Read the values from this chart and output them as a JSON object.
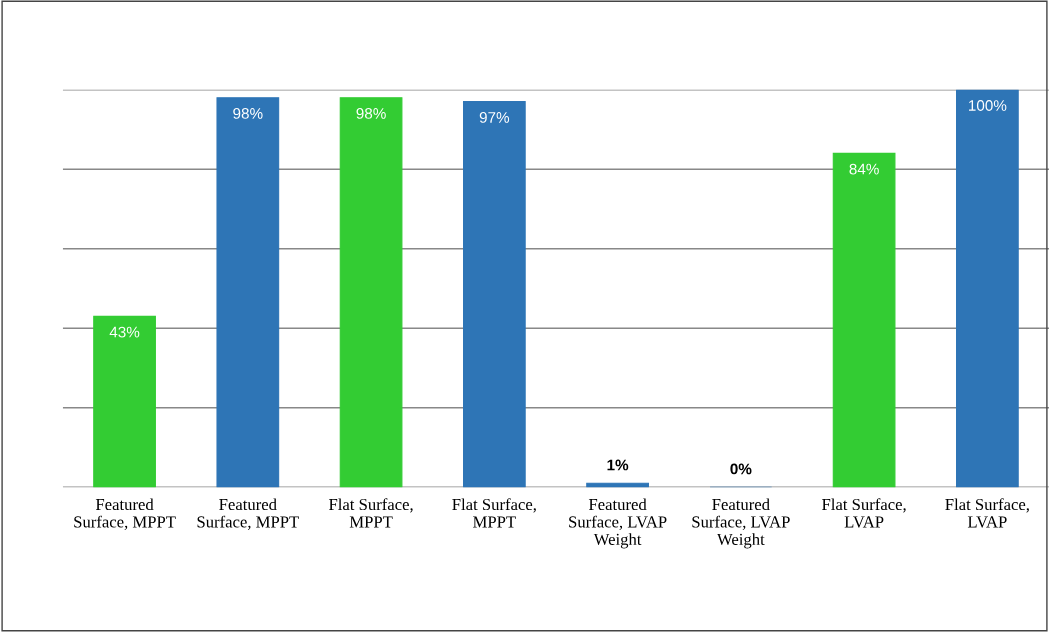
{
  "chart_data": {
    "type": "bar",
    "categories": [
      "Featured\nSurface, MPPT",
      "Featured\nSurface, MPPT",
      "Flat Surface,\nMPPT",
      "Flat Surface,\nMPPT",
      "Featured\nSurface, LVAP\nWeight",
      "Featured\nSurface, LVAP\nWeight",
      "Flat Surface,\nLVAP",
      "Flat Surface,\nLVAP"
    ],
    "values": [
      43,
      98,
      98,
      97,
      1,
      0,
      84,
      100
    ],
    "colors": [
      "#33cc33",
      "#2e75b6",
      "#33cc33",
      "#2e75b6",
      "#2e75b6",
      "#2e75b6",
      "#33cc33",
      "#2e75b6"
    ],
    "value_labels": [
      "43%",
      "98%",
      "98%",
      "97%",
      "1%",
      "0%",
      "84%",
      "100%"
    ],
    "ylim": [
      0,
      100
    ],
    "yticks": [
      {
        "value": 0,
        "label": null
      },
      {
        "value": 20,
        "label": null
      },
      {
        "value": 40,
        "label": null
      },
      {
        "value": 60,
        "label": null
      },
      {
        "value": 80,
        "label": null
      },
      {
        "value": 100,
        "label": null
      }
    ],
    "grid": "y",
    "tick_labels": "x"
  }
}
